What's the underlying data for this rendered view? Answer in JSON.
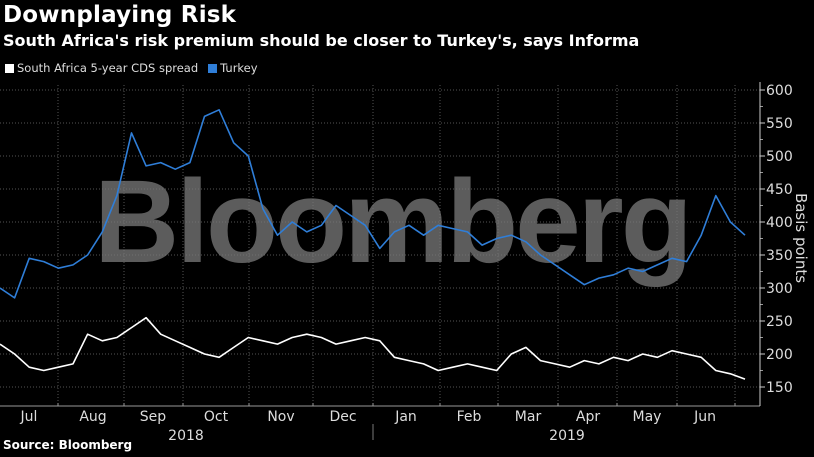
{
  "header": {
    "title": "Downplaying Risk",
    "subtitle": "South Africa's risk premium should be closer to Turkey's, says Informa"
  },
  "legend": [
    {
      "label": "South Africa 5-year CDS spread",
      "color": "#ffffff"
    },
    {
      "label": "Turkey",
      "color": "#2f7ed8"
    }
  ],
  "footer": {
    "source": "Source: Bloomberg"
  },
  "watermark": "Bloomberg",
  "chart_data": {
    "type": "line",
    "title": "Downplaying Risk",
    "subtitle": "South Africa's risk premium should be closer to Turkey's, says Informa",
    "xlabel": "",
    "ylabel": "Basis points",
    "ylim": [
      140,
      610
    ],
    "yticks": [
      150,
      200,
      250,
      300,
      350,
      400,
      450,
      500,
      550,
      600
    ],
    "xticks": [
      "Jul",
      "Aug",
      "Sep",
      "Oct",
      "Nov",
      "Dec",
      "Jan",
      "Feb",
      "Mar",
      "Apr",
      "May",
      "Jun"
    ],
    "year_labels": [
      "2018",
      "2019"
    ],
    "grid": true,
    "legend_position": "top-left",
    "x": [
      "2018-07-01",
      "2018-07-08",
      "2018-07-15",
      "2018-07-22",
      "2018-07-29",
      "2018-08-05",
      "2018-08-12",
      "2018-08-19",
      "2018-08-26",
      "2018-09-02",
      "2018-09-09",
      "2018-09-16",
      "2018-09-23",
      "2018-09-30",
      "2018-10-07",
      "2018-10-14",
      "2018-10-21",
      "2018-10-28",
      "2018-11-04",
      "2018-11-11",
      "2018-11-18",
      "2018-11-25",
      "2018-12-02",
      "2018-12-09",
      "2018-12-16",
      "2018-12-23",
      "2018-12-30",
      "2019-01-06",
      "2019-01-13",
      "2019-01-20",
      "2019-01-27",
      "2019-02-03",
      "2019-02-10",
      "2019-02-17",
      "2019-02-24",
      "2019-03-03",
      "2019-03-10",
      "2019-03-17",
      "2019-03-24",
      "2019-03-31",
      "2019-04-07",
      "2019-04-14",
      "2019-04-21",
      "2019-04-28",
      "2019-05-05",
      "2019-05-12",
      "2019-05-19",
      "2019-05-26",
      "2019-06-02",
      "2019-06-09",
      "2019-06-16",
      "2019-06-23"
    ],
    "series": [
      {
        "name": "Turkey",
        "color": "#2f7ed8",
        "values": [
          300,
          285,
          345,
          340,
          330,
          335,
          350,
          385,
          440,
          535,
          485,
          490,
          480,
          490,
          560,
          570,
          520,
          500,
          420,
          380,
          400,
          385,
          395,
          425,
          410,
          395,
          360,
          385,
          395,
          380,
          395,
          390,
          385,
          365,
          375,
          380,
          370,
          350,
          335,
          320,
          305,
          315,
          320,
          330,
          325,
          335,
          345,
          340,
          380,
          440,
          400,
          380
        ]
      },
      {
        "name": "South Africa 5-year CDS spread",
        "color": "#ffffff",
        "values": [
          215,
          200,
          180,
          175,
          180,
          185,
          230,
          220,
          225,
          240,
          255,
          230,
          220,
          210,
          200,
          195,
          210,
          225,
          220,
          215,
          225,
          230,
          225,
          215,
          220,
          225,
          220,
          195,
          190,
          185,
          175,
          180,
          185,
          180,
          175,
          200,
          210,
          190,
          185,
          180,
          190,
          185,
          195,
          190,
          200,
          195,
          205,
          200,
          195,
          175,
          170,
          162
        ]
      }
    ]
  }
}
